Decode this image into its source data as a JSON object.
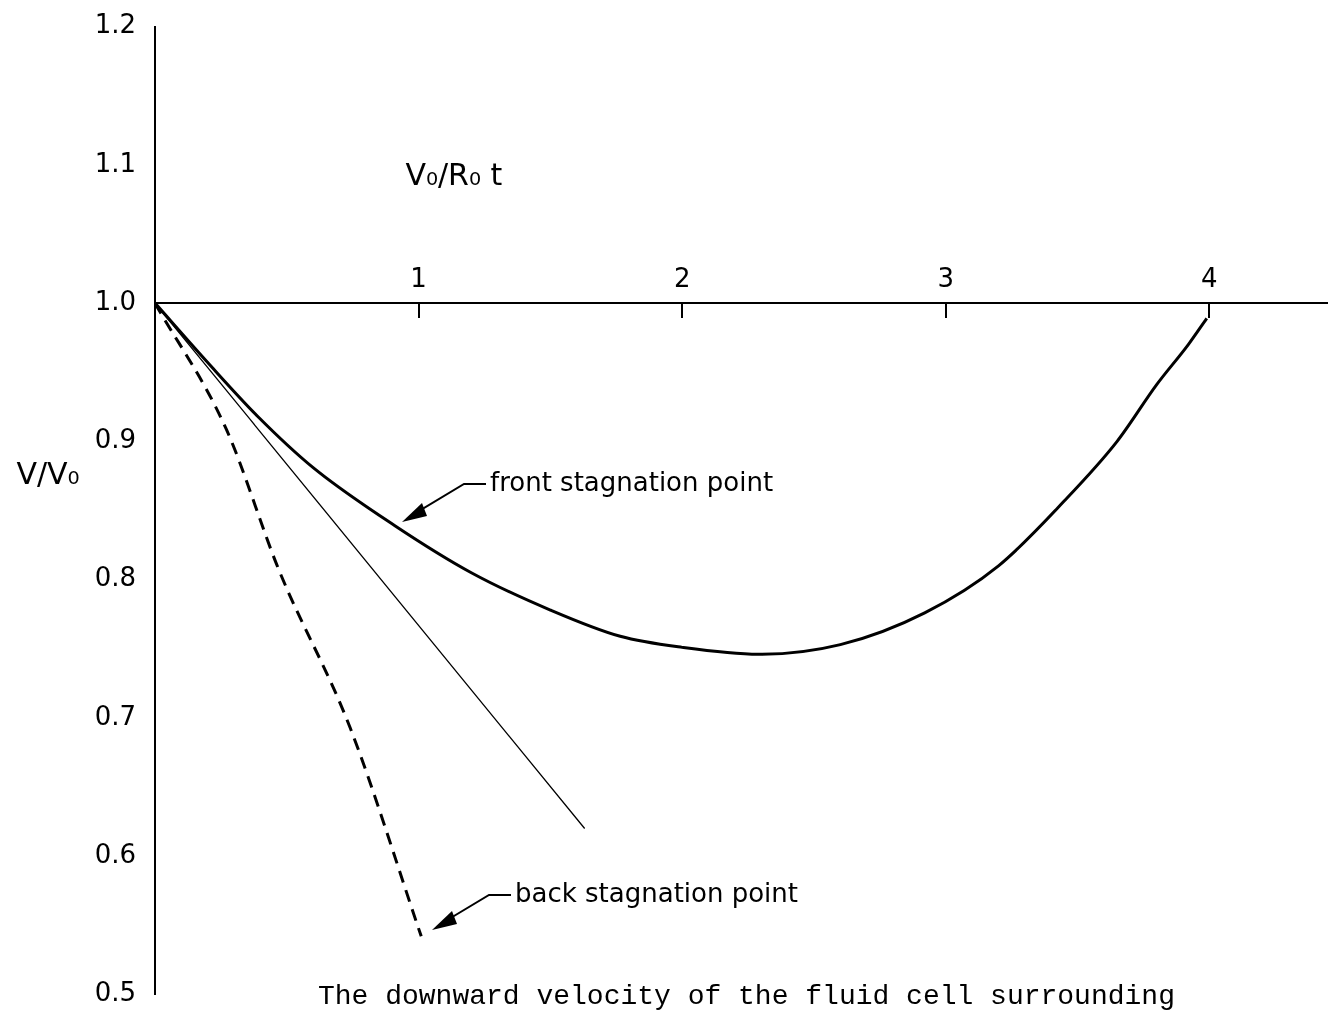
{
  "chart_data": {
    "type": "line",
    "xlabel": "V₀/R₀ t",
    "ylabel": "V/V₀",
    "xlim": [
      0,
      4.45
    ],
    "xticks": [
      1,
      2,
      3,
      4
    ],
    "ylim": [
      0.5,
      1.2
    ],
    "yticks": [
      0.5,
      0.6,
      0.7,
      0.8,
      0.9,
      {
        "value": 1,
        "label": "1.0"
      },
      1.1,
      1.2
    ],
    "grid": false,
    "legend": false,
    "marker": "none",
    "series": [
      {
        "color": "#000000",
        "line_style": "solid",
        "x": [
          0,
          0.2,
          0.39,
          0.6,
          0.91,
          1.2,
          1.5,
          1.765,
          2.0,
          2.29,
          2.6,
          2.92,
          3.2,
          3.45,
          3.65,
          3.8,
          3.92,
          3.99
        ],
        "values": [
          1.0,
          0.957,
          0.918,
          0.881,
          0.839,
          0.805,
          0.778,
          0.759,
          0.751,
          0.746,
          0.753,
          0.776,
          0.81,
          0.857,
          0.9,
          0.941,
          0.97,
          0.989
        ]
      },
      {
        "color": "#000000",
        "line_style": "solid",
        "x": [
          0,
          1.63
        ],
        "values": [
          1.0,
          0.62
        ]
      },
      {
        "color": "#000000",
        "line_style": "dashed",
        "x": [
          0,
          0.27,
          0.47,
          0.74,
          1.01
        ],
        "values": [
          1.0,
          0.909,
          0.807,
          0.693,
          0.542
        ]
      }
    ],
    "annotations": [
      "front stagnation point",
      "back stagnation point",
      "The downward velocity of the fluid cell surrounding"
    ]
  }
}
